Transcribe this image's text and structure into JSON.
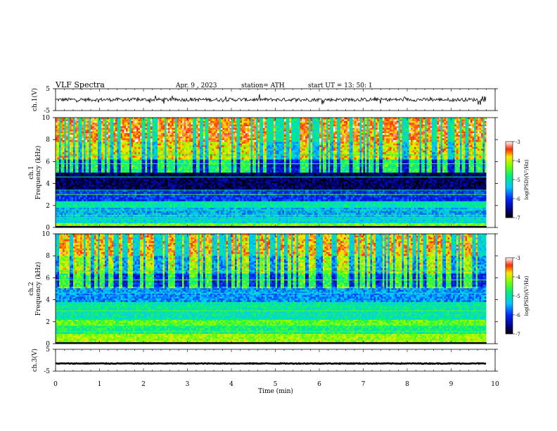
{
  "header": {
    "title": "VLF  Spectra",
    "date": "Apr. 9  , 2023",
    "station": "station= ATH",
    "start": "start  UT  =   13: 50: 1"
  },
  "chart_data": [
    {
      "id": "ch1-waveform",
      "type": "line",
      "ylabel": "ch.1(V)",
      "ylim": [
        -5,
        5
      ],
      "yticks": [
        5,
        -5
      ],
      "xlim": [
        0,
        10
      ],
      "data_end": 9.8,
      "baseline": 0,
      "color": "#000000"
    },
    {
      "id": "ch1-spectrogram",
      "type": "heatmap",
      "ylabel": "ch.1\nFrequency (kHz)",
      "ylim": [
        0,
        10
      ],
      "yticks": [
        0,
        2,
        4,
        6,
        8,
        10
      ],
      "xlim": [
        0,
        10
      ],
      "data_end": 9.8,
      "colorbar": {
        "label": "log(PSD)(V²/Hz)",
        "range": [
          -7,
          -3
        ],
        "ticks": [
          -3,
          -4,
          -5,
          -6,
          -7
        ]
      },
      "bands": [
        {
          "from": 0.0,
          "to": 0.15,
          "level": -7.0
        },
        {
          "from": 0.15,
          "to": 0.4,
          "level": -4.3
        },
        {
          "from": 0.4,
          "to": 1.0,
          "level": -5.2
        },
        {
          "from": 1.0,
          "to": 1.8,
          "level": -5.5
        },
        {
          "from": 1.8,
          "to": 2.4,
          "level": -5.0
        },
        {
          "from": 2.4,
          "to": 3.4,
          "level": -6.0
        },
        {
          "from": 3.4,
          "to": 5.0,
          "level": -6.7
        },
        {
          "from": 5.0,
          "to": 6.2,
          "level": -6.2
        },
        {
          "from": 6.2,
          "to": 7.8,
          "level": -5.4
        },
        {
          "from": 7.8,
          "to": 10.0,
          "level": -5.0
        }
      ]
    },
    {
      "id": "ch2-spectrogram",
      "type": "heatmap",
      "ylabel": "ch.2\nFrequency (kHz)",
      "ylim": [
        0,
        10
      ],
      "yticks": [
        0,
        2,
        4,
        6,
        8,
        10
      ],
      "xlim": [
        0,
        10
      ],
      "data_end": 9.8,
      "colorbar": {
        "label": "log(PSD)(V²/Hz)",
        "range": [
          -7,
          -3
        ],
        "ticks": [
          -3,
          -4,
          -5,
          -6,
          -7
        ]
      },
      "bands": [
        {
          "from": 0.0,
          "to": 0.15,
          "level": -7.0
        },
        {
          "from": 0.15,
          "to": 0.9,
          "level": -4.2
        },
        {
          "from": 0.9,
          "to": 1.6,
          "level": -4.8
        },
        {
          "from": 1.6,
          "to": 2.2,
          "level": -4.4
        },
        {
          "from": 2.2,
          "to": 3.8,
          "level": -5.0
        },
        {
          "from": 3.8,
          "to": 5.2,
          "level": -5.6
        },
        {
          "from": 5.2,
          "to": 6.4,
          "level": -6.1
        },
        {
          "from": 6.4,
          "to": 8.0,
          "level": -5.6
        },
        {
          "from": 8.0,
          "to": 10.0,
          "level": -5.2
        }
      ]
    },
    {
      "id": "ch3-waveform",
      "type": "line",
      "ylabel": "ch.3(V)",
      "ylim": [
        -5,
        5
      ],
      "yticks": [
        5,
        -5
      ],
      "xlim": [
        0,
        10
      ],
      "data_end": 9.8,
      "baseline": -1.5,
      "color": "#000000"
    }
  ],
  "xaxis": {
    "label": "Time  (min)",
    "ticks": [
      0,
      1,
      2,
      3,
      4,
      5,
      6,
      7,
      8,
      9,
      10
    ]
  }
}
